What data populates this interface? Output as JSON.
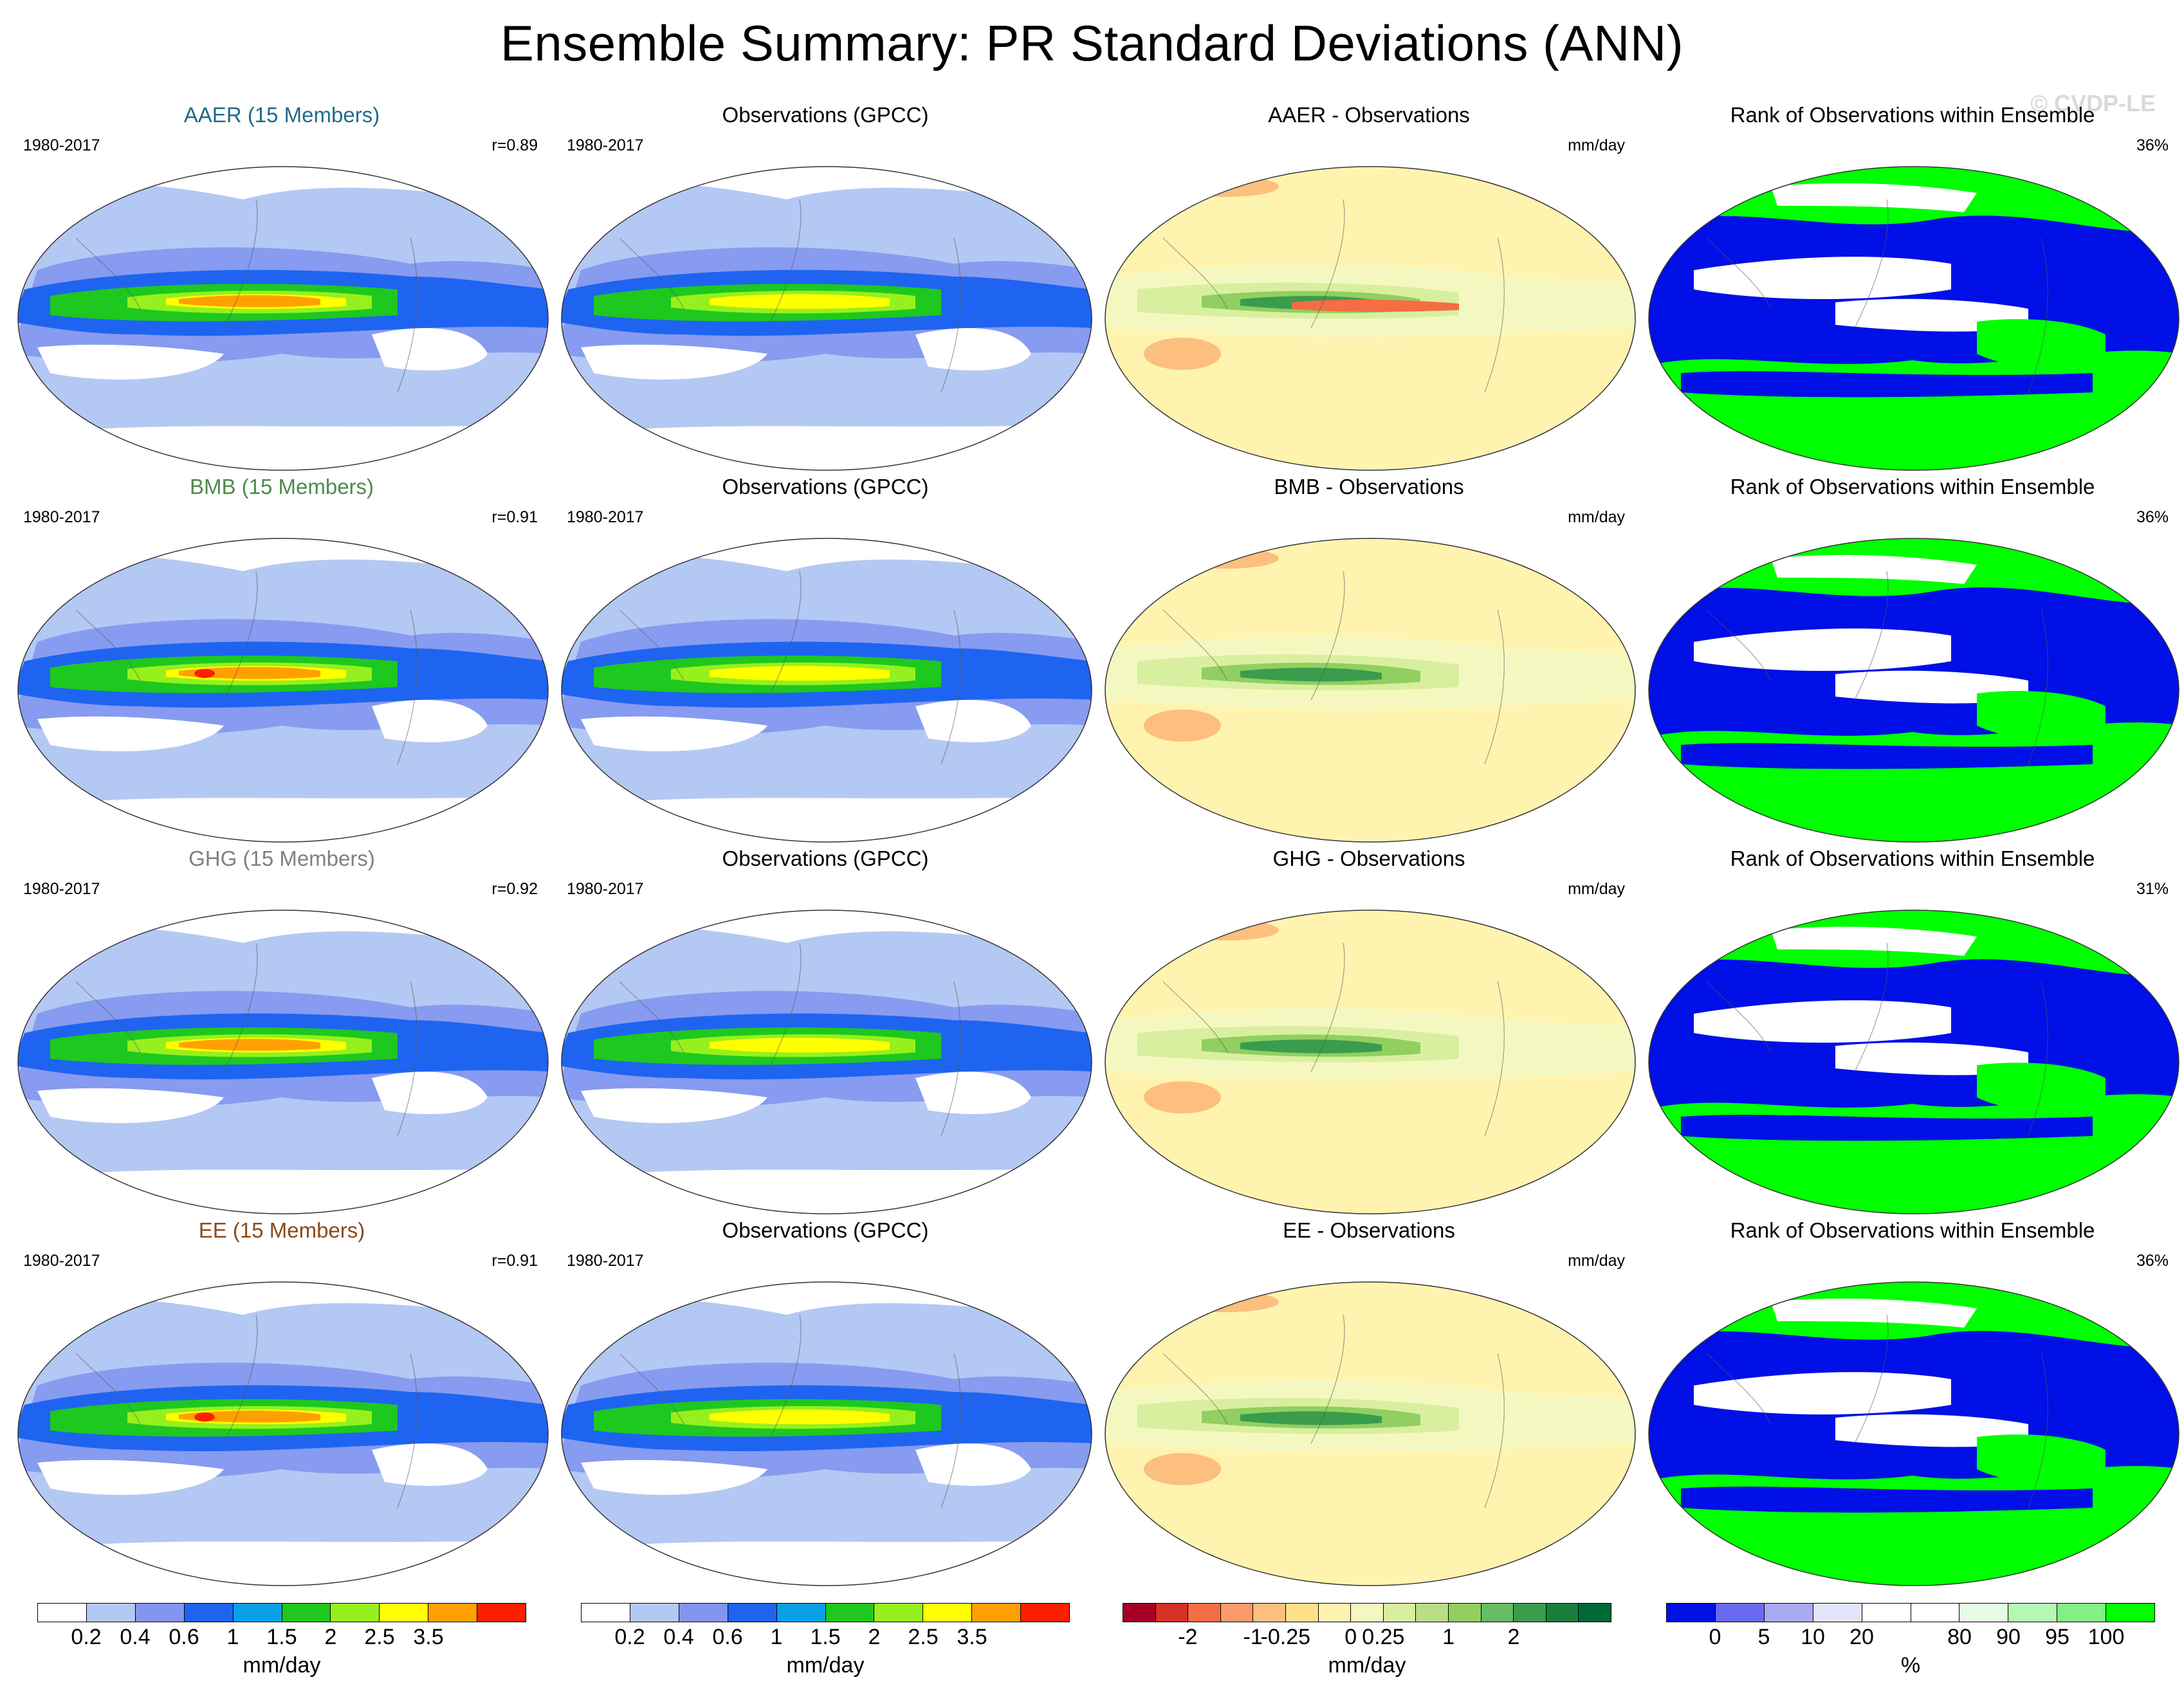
{
  "title": "Ensemble Summary: PR Standard Deviations (ANN)",
  "copyright": "© CVDP-LE",
  "rows": [
    {
      "ensemble": "AAER (15 Members)",
      "color": "#1f6b8c",
      "period": "1980-2017",
      "r": "r=0.89",
      "obs_title": "Observations (GPCC)",
      "obs_period": "1980-2017",
      "diff_title": "AAER - Observations",
      "diff_unit": "mm/day",
      "rank_title": "Rank of Observations within Ensemble",
      "rank_pct": "36%"
    },
    {
      "ensemble": "BMB (15 Members)",
      "color": "#4e8a4e",
      "period": "1980-2017",
      "r": "r=0.91",
      "obs_title": "Observations (GPCC)",
      "obs_period": "1980-2017",
      "diff_title": "BMB - Observations",
      "diff_unit": "mm/day",
      "rank_title": "Rank of Observations within Ensemble",
      "rank_pct": "36%"
    },
    {
      "ensemble": "GHG (15 Members)",
      "color": "#808080",
      "period": "1980-2017",
      "r": "r=0.92",
      "obs_title": "Observations (GPCC)",
      "obs_period": "1980-2017",
      "diff_title": "GHG - Observations",
      "diff_unit": "mm/day",
      "rank_title": "Rank of Observations within Ensemble",
      "rank_pct": "31%"
    },
    {
      "ensemble": "EE (15 Members)",
      "color": "#8b4a1a",
      "period": "1980-2017",
      "r": "r=0.91",
      "obs_title": "Observations (GPCC)",
      "obs_period": "1980-2017",
      "diff_title": "EE - Observations",
      "diff_unit": "mm/day",
      "rank_title": "Rank of Observations within Ensemble",
      "rank_pct": "36%"
    }
  ],
  "colorbars": {
    "std": {
      "colors": [
        "#ffffff",
        "#b4c8f4",
        "#8296f0",
        "#1e64f0",
        "#0aa0e6",
        "#1ec81e",
        "#96f01e",
        "#ffff00",
        "#ffa000",
        "#ff1e00"
      ],
      "ticks": [
        "0.2",
        "0.4",
        "0.6",
        "1",
        "1.5",
        "2",
        "2.5",
        "3.5"
      ],
      "unit": "mm/day"
    },
    "diff": {
      "colors": [
        "#a50026",
        "#d73027",
        "#f46d43",
        "#fb9a6a",
        "#fdbf7d",
        "#fee08b",
        "#fff3b0",
        "#f4f8c0",
        "#d9efa0",
        "#b8df86",
        "#91cf60",
        "#66bd63",
        "#3a9c4d",
        "#1a7f3c",
        "#006837"
      ],
      "ticks": [
        "-2",
        "-1",
        "-0.25",
        "0",
        "0.25",
        "1",
        "2"
      ],
      "unit": "mm/day"
    },
    "rank": {
      "colors": [
        "#0010e6",
        "#6a6af0",
        "#a9a9f4",
        "#e4e4fc",
        "#ffffff",
        "#ffffff",
        "#e4fce4",
        "#b4f8b4",
        "#82f082",
        "#00ff00"
      ],
      "ticks": [
        "0",
        "5",
        "10",
        "20",
        "80",
        "90",
        "95",
        "100"
      ],
      "unit": "%"
    }
  }
}
